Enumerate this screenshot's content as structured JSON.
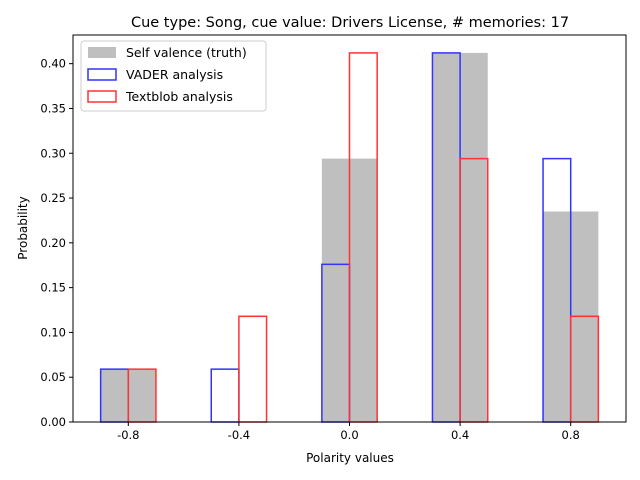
{
  "chart_data": {
    "type": "bar",
    "title": "Cue type: Song, cue value: Drivers License, # memories: 17",
    "xlabel": "Polarity values",
    "ylabel": "Probability",
    "categories": [
      -0.8,
      -0.4,
      0.0,
      0.4,
      0.8
    ],
    "x_tick_labels": [
      "-0.8",
      "-0.4",
      "0.0",
      "0.4",
      "0.8"
    ],
    "y_tick_labels": [
      "0.00",
      "0.05",
      "0.10",
      "0.15",
      "0.20",
      "0.25",
      "0.30",
      "0.35",
      "0.40"
    ],
    "bar_width": 0.2,
    "xlim": [
      -1.0,
      1.0
    ],
    "ylim": [
      0,
      0.432
    ],
    "legend_position": "top-left",
    "grid": false,
    "series": [
      {
        "name": "Self valence (truth)",
        "style": "filled",
        "color": "#bfbfbf",
        "values": [
          0.059,
          0.0,
          0.294,
          0.412,
          0.235
        ]
      },
      {
        "name": "VADER analysis",
        "style": "outline",
        "color": "#3333ff",
        "values": [
          0.059,
          0.059,
          0.176,
          0.412,
          0.294
        ]
      },
      {
        "name": "Textblob analysis",
        "style": "outline",
        "color": "#ff3333",
        "values": [
          0.059,
          0.118,
          0.412,
          0.294,
          0.118
        ]
      }
    ]
  }
}
